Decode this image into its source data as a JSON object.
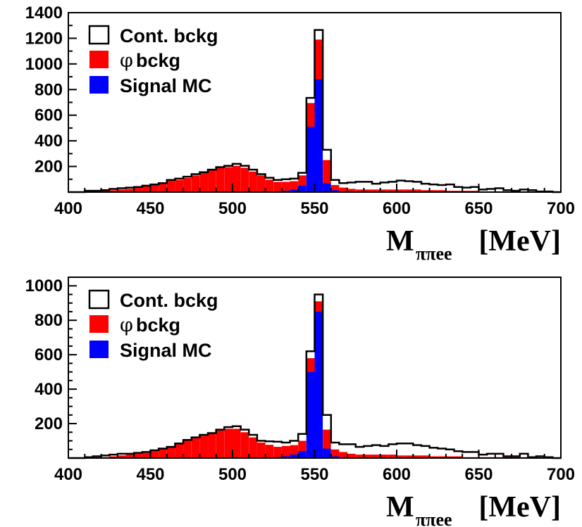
{
  "chart_data": [
    {
      "type": "bar",
      "subtype": "stacked-histogram",
      "title": "",
      "xlabel": {
        "main": "M",
        "subscript": "ππee",
        "unit": "[MeV]"
      },
      "ylabel": "",
      "xlim": [
        400,
        700
      ],
      "ylim": [
        0,
        1400
      ],
      "xticks": [
        "400",
        "450",
        "500",
        "550",
        "600",
        "650",
        "700"
      ],
      "yticks": [
        "200",
        "400",
        "600",
        "800",
        "1000",
        "1200",
        "1400"
      ],
      "bin_width": 5,
      "bins": [
        400,
        405,
        410,
        415,
        420,
        425,
        430,
        435,
        440,
        445,
        450,
        455,
        460,
        465,
        470,
        475,
        480,
        485,
        490,
        495,
        500,
        505,
        510,
        515,
        520,
        525,
        530,
        535,
        540,
        545,
        550,
        555,
        560,
        565,
        570,
        575,
        580,
        585,
        590,
        595,
        600,
        605,
        610,
        615,
        620,
        625,
        630,
        635,
        640,
        645,
        650,
        655,
        660,
        665,
        670,
        675,
        680,
        685,
        690,
        695
      ],
      "legend": {
        "position": "top-left",
        "entries": [
          {
            "symbol": "box",
            "label": "Cont. bckg"
          },
          {
            "symbol": "φ",
            "label": "bckg"
          },
          {
            "symbol": "box",
            "label": "Signal MC"
          }
        ]
      },
      "series": [
        {
          "name": "Signal MC",
          "color": "#0000ff",
          "values": [
            0,
            0,
            0,
            0,
            0,
            0,
            0,
            0,
            0,
            0,
            0,
            0,
            0,
            0,
            0,
            0,
            0,
            0,
            0,
            0,
            0,
            0,
            0,
            0,
            2,
            5,
            10,
            20,
            50,
            510,
            880,
            70,
            15,
            5,
            0,
            0,
            0,
            0,
            0,
            0,
            0,
            0,
            0,
            0,
            0,
            0,
            0,
            0,
            0,
            0,
            0,
            0,
            0,
            0,
            0,
            0,
            0,
            0,
            0,
            0
          ]
        },
        {
          "name": "φ bckg",
          "color": "#ff0000",
          "values": [
            0,
            0,
            5,
            5,
            10,
            15,
            20,
            25,
            35,
            45,
            55,
            70,
            90,
            95,
            110,
            130,
            155,
            175,
            190,
            195,
            205,
            190,
            160,
            130,
            95,
            75,
            70,
            65,
            80,
            185,
            310,
            180,
            40,
            30,
            25,
            20,
            20,
            20,
            20,
            20,
            20,
            20,
            20,
            15,
            15,
            15,
            10,
            10,
            10,
            10,
            5,
            5,
            5,
            5,
            5,
            5,
            5,
            0,
            0,
            0
          ]
        },
        {
          "name": "Cont. bckg",
          "color": "#ffffff",
          "values": [
            0,
            0,
            5,
            5,
            5,
            10,
            10,
            10,
            5,
            5,
            5,
            0,
            5,
            10,
            10,
            10,
            0,
            0,
            5,
            10,
            15,
            15,
            15,
            10,
            15,
            15,
            20,
            20,
            20,
            40,
            75,
            80,
            40,
            35,
            50,
            60,
            60,
            45,
            55,
            60,
            70,
            65,
            60,
            50,
            45,
            40,
            50,
            30,
            25,
            30,
            15,
            20,
            25,
            10,
            5,
            15,
            10,
            5,
            5,
            0
          ]
        }
      ]
    },
    {
      "type": "bar",
      "subtype": "stacked-histogram",
      "title": "",
      "xlabel": {
        "main": "M",
        "subscript": "ππee",
        "unit": "[MeV]"
      },
      "ylabel": "",
      "xlim": [
        400,
        700
      ],
      "ylim": [
        0,
        1050
      ],
      "xticks": [
        "400",
        "450",
        "500",
        "550",
        "600",
        "650",
        "700"
      ],
      "yticks": [
        "200",
        "400",
        "600",
        "800",
        "1000"
      ],
      "bin_width": 5,
      "bins": [
        400,
        405,
        410,
        415,
        420,
        425,
        430,
        435,
        440,
        445,
        450,
        455,
        460,
        465,
        470,
        475,
        480,
        485,
        490,
        495,
        500,
        505,
        510,
        515,
        520,
        525,
        530,
        535,
        540,
        545,
        550,
        555,
        560,
        565,
        570,
        575,
        580,
        585,
        590,
        595,
        600,
        605,
        610,
        615,
        620,
        625,
        630,
        635,
        640,
        645,
        650,
        655,
        660,
        665,
        670,
        675,
        680,
        685,
        690,
        695
      ],
      "legend": {
        "position": "top-left",
        "entries": [
          {
            "symbol": "box",
            "label": "Cont. bckg"
          },
          {
            "symbol": "φ",
            "label": "bckg"
          },
          {
            "symbol": "box",
            "label": "Signal MC"
          }
        ]
      },
      "series": [
        {
          "name": "Signal MC",
          "color": "#0000ff",
          "values": [
            0,
            0,
            0,
            0,
            0,
            0,
            0,
            0,
            0,
            0,
            0,
            0,
            0,
            0,
            0,
            0,
            0,
            0,
            0,
            0,
            0,
            0,
            0,
            0,
            2,
            5,
            10,
            20,
            40,
            500,
            850,
            55,
            10,
            5,
            0,
            0,
            0,
            0,
            0,
            0,
            0,
            0,
            0,
            0,
            0,
            0,
            0,
            0,
            0,
            0,
            0,
            0,
            0,
            0,
            0,
            0,
            0,
            0,
            0,
            0
          ]
        },
        {
          "name": "φ bckg",
          "color": "#ff0000",
          "values": [
            0,
            0,
            0,
            5,
            5,
            10,
            15,
            20,
            25,
            30,
            40,
            55,
            65,
            80,
            100,
            115,
            130,
            145,
            160,
            170,
            170,
            150,
            120,
            90,
            75,
            60,
            60,
            55,
            60,
            80,
            60,
            110,
            40,
            30,
            25,
            20,
            20,
            20,
            20,
            20,
            15,
            15,
            15,
            15,
            10,
            10,
            10,
            10,
            5,
            5,
            5,
            5,
            5,
            5,
            5,
            5,
            0,
            0,
            0,
            0
          ]
        },
        {
          "name": "Cont. bckg",
          "color": "#ffffff",
          "values": [
            0,
            0,
            5,
            5,
            10,
            10,
            10,
            5,
            5,
            5,
            5,
            0,
            0,
            5,
            5,
            5,
            5,
            0,
            5,
            10,
            15,
            15,
            15,
            10,
            20,
            30,
            20,
            25,
            40,
            40,
            40,
            85,
            40,
            45,
            55,
            45,
            50,
            55,
            50,
            60,
            70,
            70,
            60,
            55,
            50,
            45,
            40,
            30,
            30,
            30,
            15,
            20,
            20,
            5,
            5,
            20,
            5,
            10,
            5,
            0
          ]
        }
      ]
    }
  ]
}
